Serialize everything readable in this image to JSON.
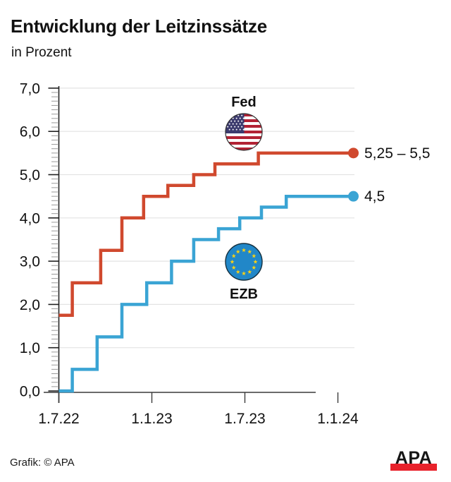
{
  "header": {
    "title": "Entwicklung der Leitzinssätze",
    "subtitle": "in Prozent"
  },
  "footer": {
    "credit": "Grafik: © APA",
    "logo_text": "APA"
  },
  "colors": {
    "fed_line": "#d0492e",
    "ezb_line": "#3aa4d4",
    "grid": "#e3e3e3",
    "axis": "#3a3a3a",
    "minor_tick": "#9a9a9a",
    "apa_red": "#e8222b",
    "us_flag_red": "#b22234",
    "us_flag_blue": "#3c3b6e",
    "eu_flag_blue": "#2187c8",
    "eu_star_yellow": "#f5d018"
  },
  "chart_data": {
    "type": "line",
    "subtype": "step",
    "title": "Entwicklung der Leitzinssätze",
    "ylabel": "in Prozent",
    "ylim": [
      0,
      7
    ],
    "y_ticks": [
      0,
      1,
      2,
      3,
      4,
      5,
      6,
      7
    ],
    "y_tick_labels": [
      "0,0",
      "1,0",
      "2,0",
      "3,0",
      "4,0",
      "5,0",
      "6,0",
      "7,0"
    ],
    "y_minor_tick_step": 0.1,
    "x_axis_unit": "months since 1.7.2022",
    "x_tick_months": [
      0,
      6,
      12,
      18
    ],
    "x_tick_labels": [
      "1.7.22",
      "1.1.23",
      "1.7.23",
      "1.1.24"
    ],
    "grid": "horizontal",
    "series": [
      {
        "name": "Fed",
        "flag": "us-flag",
        "color": "#d0492e",
        "end_label": "5,25 – 5,5",
        "end_value": 5.5,
        "steps": [
          {
            "m": 0.0,
            "v": 1.75
          },
          {
            "m": 0.87,
            "v": 2.5
          },
          {
            "m": 2.7,
            "v": 3.25
          },
          {
            "m": 4.07,
            "v": 4.0
          },
          {
            "m": 5.47,
            "v": 4.5
          },
          {
            "m": 7.03,
            "v": 4.75
          },
          {
            "m": 8.7,
            "v": 5.0
          },
          {
            "m": 10.07,
            "v": 5.25
          },
          {
            "m": 12.87,
            "v": 5.5
          }
        ]
      },
      {
        "name": "EZB",
        "flag": "eu-flag",
        "color": "#3aa4d4",
        "end_label": "4,5",
        "end_value": 4.5,
        "steps": [
          {
            "m": 0.0,
            "v": 0.0
          },
          {
            "m": 0.87,
            "v": 0.5
          },
          {
            "m": 2.47,
            "v": 1.25
          },
          {
            "m": 4.07,
            "v": 2.0
          },
          {
            "m": 5.67,
            "v": 2.5
          },
          {
            "m": 7.27,
            "v": 3.0
          },
          {
            "m": 8.7,
            "v": 3.5
          },
          {
            "m": 10.3,
            "v": 3.75
          },
          {
            "m": 11.67,
            "v": 4.0
          },
          {
            "m": 13.07,
            "v": 4.25
          },
          {
            "m": 14.67,
            "v": 4.5
          }
        ]
      }
    ]
  }
}
